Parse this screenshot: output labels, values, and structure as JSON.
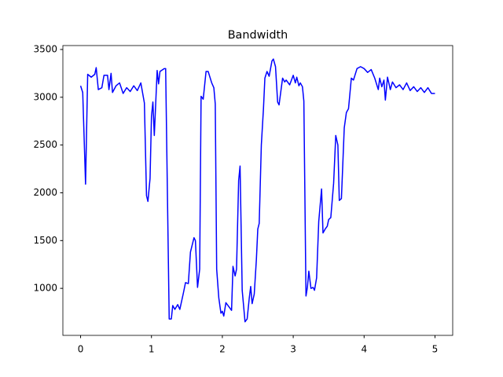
{
  "chart_data": {
    "type": "line",
    "title": "Bandwidth",
    "x": [
      0,
      0.03,
      0.07,
      0.1,
      0.15,
      0.2,
      0.22,
      0.25,
      0.3,
      0.33,
      0.38,
      0.4,
      0.43,
      0.45,
      0.5,
      0.55,
      0.6,
      0.65,
      0.7,
      0.75,
      0.8,
      0.85,
      0.9,
      0.93,
      0.95,
      0.98,
      1.0,
      1.02,
      1.04,
      1.08,
      1.1,
      1.12,
      1.18,
      1.2,
      1.25,
      1.28,
      1.3,
      1.33,
      1.37,
      1.4,
      1.45,
      1.48,
      1.52,
      1.55,
      1.6,
      1.62,
      1.65,
      1.68,
      1.7,
      1.73,
      1.77,
      1.8,
      1.85,
      1.88,
      1.9,
      1.92,
      1.95,
      1.98,
      2.0,
      2.02,
      2.05,
      2.1,
      2.13,
      2.15,
      2.18,
      2.2,
      2.23,
      2.25,
      2.28,
      2.32,
      2.35,
      2.38,
      2.4,
      2.42,
      2.45,
      2.48,
      2.5,
      2.52,
      2.55,
      2.58,
      2.6,
      2.63,
      2.66,
      2.7,
      2.72,
      2.75,
      2.78,
      2.8,
      2.85,
      2.88,
      2.9,
      2.95,
      3.0,
      3.03,
      3.05,
      3.08,
      3.1,
      3.13,
      3.15,
      3.18,
      3.2,
      3.22,
      3.25,
      3.28,
      3.3,
      3.33,
      3.36,
      3.4,
      3.42,
      3.45,
      3.48,
      3.5,
      3.53,
      3.57,
      3.6,
      3.63,
      3.65,
      3.68,
      3.72,
      3.75,
      3.78,
      3.82,
      3.85,
      3.9,
      3.95,
      4.0,
      4.05,
      4.1,
      4.15,
      4.2,
      4.22,
      4.25,
      4.28,
      4.3,
      4.33,
      4.37,
      4.4,
      4.45,
      4.5,
      4.55,
      4.6,
      4.65,
      4.7,
      4.75,
      4.8,
      4.85,
      4.9,
      4.95,
      5.0
    ],
    "series": [
      {
        "color": "#0000ff",
        "values": [
          3120,
          3050,
          2090,
          3240,
          3210,
          3240,
          3310,
          3080,
          3100,
          3230,
          3230,
          3080,
          3250,
          3050,
          3120,
          3150,
          3040,
          3100,
          3060,
          3120,
          3070,
          3150,
          2940,
          1970,
          1910,
          2150,
          2800,
          2950,
          2600,
          3280,
          3140,
          3270,
          3300,
          3300,
          680,
          680,
          820,
          780,
          830,
          780,
          950,
          1060,
          1050,
          1380,
          1530,
          1500,
          1010,
          1200,
          3010,
          2980,
          3270,
          3270,
          3150,
          3100,
          2930,
          1200,
          900,
          740,
          760,
          710,
          850,
          800,
          770,
          1230,
          1130,
          1200,
          2130,
          2280,
          980,
          650,
          680,
          900,
          1020,
          840,
          940,
          1300,
          1620,
          1680,
          2500,
          2880,
          3200,
          3270,
          3220,
          3380,
          3400,
          3320,
          2950,
          2920,
          3200,
          3160,
          3180,
          3130,
          3230,
          3150,
          3210,
          3120,
          3150,
          3110,
          2960,
          920,
          1010,
          1180,
          1000,
          1010,
          980,
          1110,
          1700,
          2040,
          1580,
          1620,
          1650,
          1720,
          1740,
          2100,
          2600,
          2500,
          1920,
          1940,
          2680,
          2840,
          2880,
          3200,
          3180,
          3300,
          3320,
          3300,
          3260,
          3290,
          3200,
          3080,
          3200,
          3110,
          3180,
          2970,
          3210,
          3080,
          3160,
          3100,
          3130,
          3080,
          3150,
          3070,
          3110,
          3060,
          3100,
          3050,
          3100,
          3040,
          3040
        ]
      }
    ],
    "xlim": [
      -0.25,
      5.25
    ],
    "ylim": [
      508,
      3541
    ],
    "xticks": [
      0,
      1,
      2,
      3,
      4,
      5
    ],
    "yticks": [
      1000,
      1500,
      2000,
      2500,
      3000,
      3500
    ]
  }
}
